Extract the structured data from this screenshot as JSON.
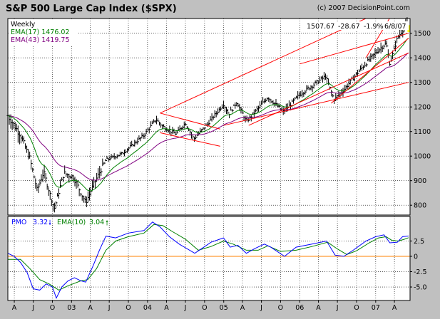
{
  "title": "S&P 500 Large Cap Index ($SPX)",
  "copyright": "(c) 2007 DecisionPoint.com",
  "readout": {
    "close": "1507.67",
    "change": "-28.67",
    "pct": "-1.9%",
    "date": "6/8/07"
  },
  "price_panel": {
    "period": "Weekly",
    "ema17_label": "EMA(17) 1476.02",
    "ema43_label": "EMA(43) 1419.75"
  },
  "pmo_panel": {
    "pmo_label": "PMO",
    "pmo_value": "3.32",
    "ema_label": "EMA(10)",
    "ema_value": "3.04"
  },
  "colors": {
    "background": "#c0c0c0",
    "plot": "#ffffff",
    "price_bars": "#000000",
    "ema17": "#008000",
    "ema43": "#800080",
    "trendline": "#ff0000",
    "pmo": "#0000ff",
    "pmo_signal": "#008000",
    "zero_line": "#ff8000",
    "last_bar": "#ffff00",
    "down_arrow": "#0000ff",
    "up_arrow": "#008000"
  },
  "x_tick_labels": [
    "A",
    "J",
    "O",
    "03",
    "A",
    "J",
    "O",
    "04",
    "A",
    "J",
    "O",
    "05",
    "A",
    "J",
    "O",
    "06",
    "A",
    "J",
    "O",
    "07",
    "A"
  ],
  "chart_data": [
    {
      "type": "line",
      "subtype": "ohlc-weekly",
      "title": "S&P 500 Large Cap Index ($SPX)",
      "x_range": [
        "2002-03",
        "2007-06"
      ],
      "ylim": [
        760,
        1560
      ],
      "y_ticks": [
        800,
        900,
        1000,
        1100,
        1200,
        1300,
        1400,
        1500
      ],
      "grid": true,
      "anchors": [
        [
          "2002-03-01",
          1165
        ],
        [
          "2002-05-01",
          1085
        ],
        [
          "2002-06-15",
          990
        ],
        [
          "2002-07-20",
          860
        ],
        [
          "2002-08-20",
          935
        ],
        [
          "2002-10-10",
          785
        ],
        [
          "2002-11-25",
          930
        ],
        [
          "2003-01-10",
          915
        ],
        [
          "2003-03-10",
          810
        ],
        [
          "2003-04-15",
          880
        ],
        [
          "2003-06-15",
          985
        ],
        [
          "2003-09-01",
          1010
        ],
        [
          "2003-12-15",
          1085
        ],
        [
          "2004-02-10",
          1150
        ],
        [
          "2004-03-15",
          1120
        ],
        [
          "2004-05-15",
          1090
        ],
        [
          "2004-07-01",
          1135
        ],
        [
          "2004-08-10",
          1070
        ],
        [
          "2004-10-10",
          1125
        ],
        [
          "2004-12-31",
          1212
        ],
        [
          "2005-01-25",
          1170
        ],
        [
          "2005-03-05",
          1220
        ],
        [
          "2005-04-20",
          1140
        ],
        [
          "2005-08-01",
          1240
        ],
        [
          "2005-10-15",
          1180
        ],
        [
          "2005-12-31",
          1250
        ],
        [
          "2006-05-05",
          1325
        ],
        [
          "2006-06-15",
          1230
        ],
        [
          "2006-08-01",
          1270
        ],
        [
          "2006-10-01",
          1335
        ],
        [
          "2006-12-31",
          1420
        ],
        [
          "2007-02-20",
          1460
        ],
        [
          "2007-03-10",
          1375
        ],
        [
          "2007-04-15",
          1480
        ],
        [
          "2007-06-01",
          1540
        ],
        [
          "2007-06-08",
          1508
        ]
      ],
      "series": [
        {
          "name": "EMA(17)",
          "last": 1476.02
        },
        {
          "name": "EMA(43)",
          "last": 1419.75
        }
      ],
      "trendlines": [
        {
          "from": [
            "2004-03-01",
            1175
          ],
          "to": [
            "2007-06-08",
            1640
          ]
        },
        {
          "from": [
            "2005-05-01",
            1125
          ],
          "to": [
            "2007-06-08",
            1420
          ]
        },
        {
          "from": [
            "2006-06-01",
            1215
          ],
          "to": [
            "2007-06-08",
            1480
          ]
        },
        {
          "from": [
            "2006-01-01",
            1375
          ],
          "to": [
            "2007-06-08",
            1500
          ]
        },
        {
          "from": [
            "2005-01-01",
            1125
          ],
          "to": [
            "2007-06-08",
            1300
          ]
        },
        {
          "from": [
            "2006-11-15",
            1400
          ],
          "to": [
            "2007-06-08",
            1690
          ]
        },
        {
          "from": [
            "2004-03-01",
            1175
          ],
          "to": [
            "2004-12-15",
            1110
          ]
        },
        {
          "from": [
            "2004-03-01",
            1095
          ],
          "to": [
            "2004-12-15",
            1040
          ]
        }
      ]
    },
    {
      "type": "line",
      "title": "PMO 3.32 EMA(10) 3.04",
      "ylim": [
        -7.2,
        6.5
      ],
      "y_ticks": [
        2.5,
        0,
        -2.5,
        -5.0
      ],
      "zero_line": 0,
      "series": [
        {
          "name": "PMO",
          "points": [
            [
              "2002-03-01",
              0.5
            ],
            [
              "2002-04-01",
              0.0
            ],
            [
              "2002-05-01",
              -1.0
            ],
            [
              "2002-06-01",
              -2.6
            ],
            [
              "2002-07-01",
              -5.3
            ],
            [
              "2002-08-01",
              -5.5
            ],
            [
              "2002-09-01",
              -4.5
            ],
            [
              "2002-10-01",
              -5.0
            ],
            [
              "2002-10-20",
              -6.8
            ],
            [
              "2002-11-15",
              -5.0
            ],
            [
              "2002-12-15",
              -4.0
            ],
            [
              "2003-01-15",
              -3.5
            ],
            [
              "2003-02-15",
              -4.0
            ],
            [
              "2003-03-10",
              -4.2
            ],
            [
              "2003-04-15",
              -1.5
            ],
            [
              "2003-05-15",
              1.0
            ],
            [
              "2003-06-15",
              3.3
            ],
            [
              "2003-08-01",
              3.0
            ],
            [
              "2003-10-01",
              3.8
            ],
            [
              "2003-12-15",
              4.2
            ],
            [
              "2004-01-25",
              5.6
            ],
            [
              "2004-03-01",
              4.8
            ],
            [
              "2004-04-15",
              3.2
            ],
            [
              "2004-06-01",
              2.0
            ],
            [
              "2004-08-15",
              0.5
            ],
            [
              "2004-09-15",
              1.2
            ],
            [
              "2004-11-01",
              2.3
            ],
            [
              "2004-12-31",
              3.0
            ],
            [
              "2005-02-01",
              1.5
            ],
            [
              "2005-03-10",
              1.8
            ],
            [
              "2005-04-20",
              0.5
            ],
            [
              "2005-06-01",
              1.3
            ],
            [
              "2005-07-15",
              2.0
            ],
            [
              "2005-08-15",
              1.5
            ],
            [
              "2005-10-20",
              0.0
            ],
            [
              "2005-12-15",
              1.5
            ],
            [
              "2006-03-01",
              2.0
            ],
            [
              "2006-05-10",
              2.5
            ],
            [
              "2006-06-20",
              0.2
            ],
            [
              "2006-08-01",
              0.0
            ],
            [
              "2006-09-15",
              1.0
            ],
            [
              "2006-11-15",
              2.5
            ],
            [
              "2007-01-01",
              3.2
            ],
            [
              "2007-02-10",
              3.5
            ],
            [
              "2007-03-10",
              2.2
            ],
            [
              "2007-04-15",
              2.3
            ],
            [
              "2007-05-10",
              3.2
            ],
            [
              "2007-06-08",
              3.32
            ]
          ]
        },
        {
          "name": "EMA(10)",
          "points": [
            [
              "2002-03-01",
              -0.5
            ],
            [
              "2002-05-01",
              -0.5
            ],
            [
              "2002-06-15",
              -2.0
            ],
            [
              "2002-08-01",
              -3.8
            ],
            [
              "2002-09-15",
              -4.5
            ],
            [
              "2002-11-01",
              -5.5
            ],
            [
              "2002-12-15",
              -4.8
            ],
            [
              "2003-02-15",
              -4.0
            ],
            [
              "2003-03-20",
              -3.8
            ],
            [
              "2003-05-01",
              -2.0
            ],
            [
              "2003-06-15",
              1.0
            ],
            [
              "2003-08-01",
              2.5
            ],
            [
              "2003-10-01",
              3.2
            ],
            [
              "2003-12-15",
              3.8
            ],
            [
              "2004-02-01",
              5.2
            ],
            [
              "2004-03-15",
              5.0
            ],
            [
              "2004-05-01",
              4.0
            ],
            [
              "2004-07-01",
              2.8
            ],
            [
              "2004-09-01",
              1.0
            ],
            [
              "2004-11-01",
              1.6
            ],
            [
              "2004-12-31",
              2.5
            ],
            [
              "2005-02-15",
              2.0
            ],
            [
              "2005-04-20",
              1.0
            ],
            [
              "2005-06-15",
              1.0
            ],
            [
              "2005-08-01",
              1.7
            ],
            [
              "2005-10-01",
              0.8
            ],
            [
              "2005-12-15",
              1.0
            ],
            [
              "2006-03-01",
              1.6
            ],
            [
              "2006-05-15",
              2.3
            ],
            [
              "2006-07-01",
              1.2
            ],
            [
              "2006-08-15",
              0.3
            ],
            [
              "2006-10-01",
              0.9
            ],
            [
              "2006-12-01",
              2.2
            ],
            [
              "2007-01-15",
              3.0
            ],
            [
              "2007-02-20",
              3.2
            ],
            [
              "2007-03-20",
              2.6
            ],
            [
              "2007-04-20",
              2.5
            ],
            [
              "2007-05-20",
              2.8
            ],
            [
              "2007-06-08",
              3.04
            ]
          ]
        }
      ]
    }
  ]
}
